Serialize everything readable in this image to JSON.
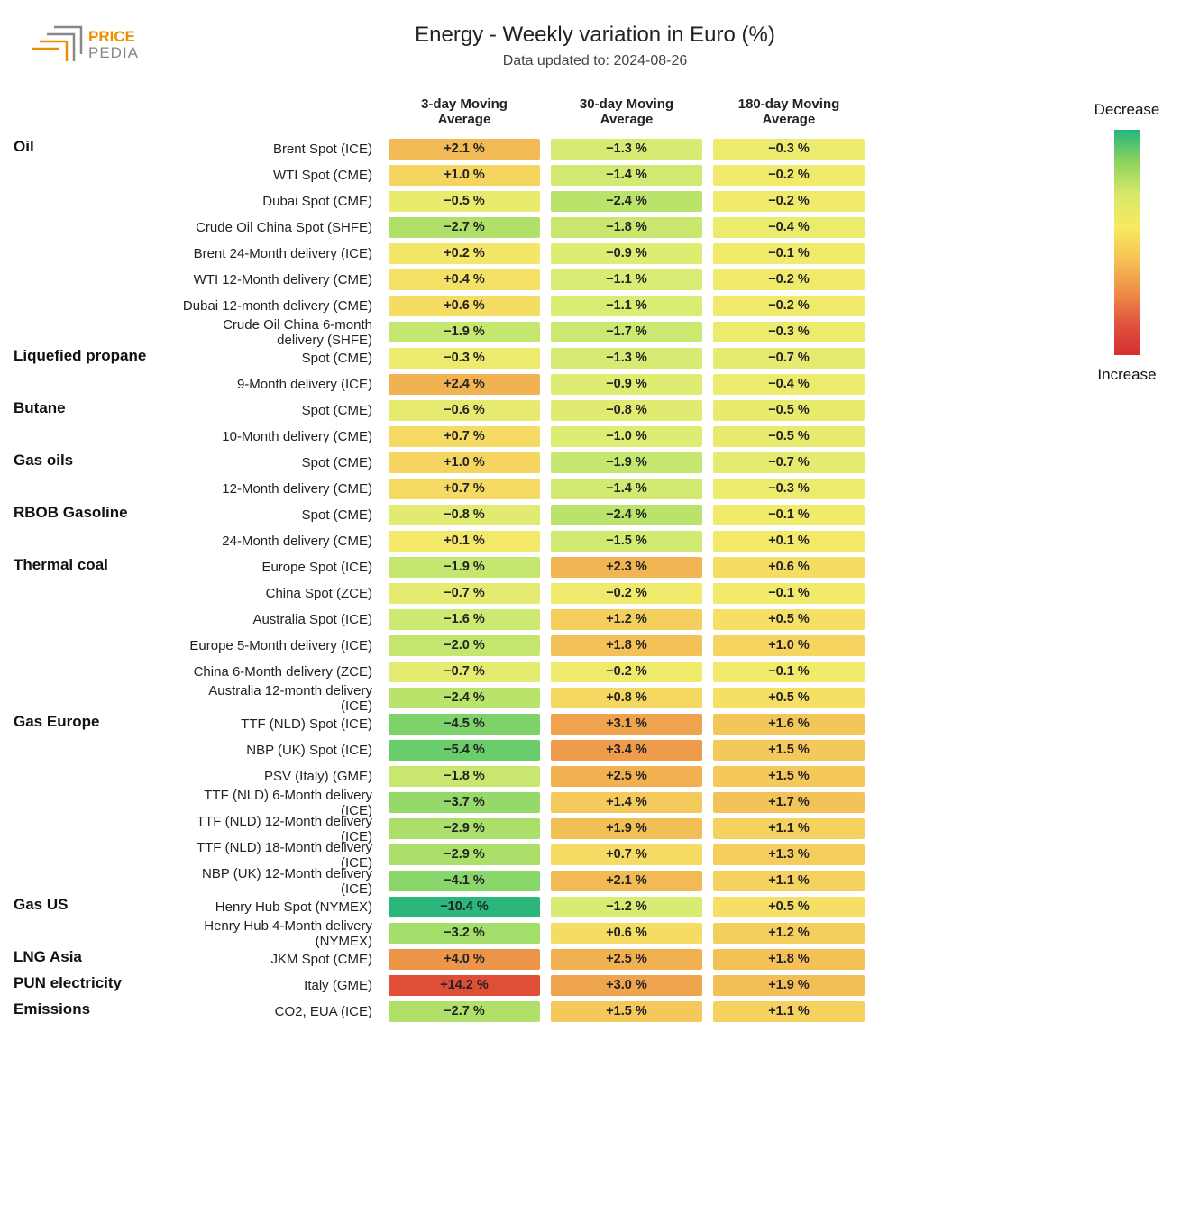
{
  "title": "Energy - Weekly variation in Euro (%)",
  "subtitle": "Data updated to: 2024-08-26",
  "logo": {
    "text1": "PRICE",
    "text2": "PEDIA",
    "color1": "#f08c00",
    "color2": "#888888"
  },
  "columns": [
    "3-day Moving Average",
    "30-day Moving Average",
    "180-day Moving Average"
  ],
  "legend": {
    "top": "Decrease",
    "bottom": "Increase",
    "gradient": [
      "#24b47e",
      "#8fd35f",
      "#d6e86a",
      "#f7ea5f",
      "#f5c455",
      "#f09048",
      "#e15440",
      "#d62f2f"
    ]
  },
  "color_scale": {
    "min": -11,
    "max": 15,
    "stops": [
      {
        "v": -11,
        "c": "#24b47e"
      },
      {
        "v": -5,
        "c": "#6fcf6a"
      },
      {
        "v": -2.5,
        "c": "#b7e26a"
      },
      {
        "v": -1.2,
        "c": "#d8ec74"
      },
      {
        "v": 0,
        "c": "#f4ea6a"
      },
      {
        "v": 1,
        "c": "#f5d460"
      },
      {
        "v": 2,
        "c": "#f2bc55"
      },
      {
        "v": 3.5,
        "c": "#ee9a4a"
      },
      {
        "v": 8,
        "c": "#e8713d"
      },
      {
        "v": 15,
        "c": "#de4a35"
      }
    ]
  },
  "rows": [
    {
      "cat": "Oil",
      "label": "Brent Spot (ICE)",
      "v": [
        2.1,
        -1.3,
        -0.3
      ]
    },
    {
      "cat": "",
      "label": "WTI Spot (CME)",
      "v": [
        1.0,
        -1.4,
        -0.2
      ]
    },
    {
      "cat": "",
      "label": "Dubai Spot (CME)",
      "v": [
        -0.5,
        -2.4,
        -0.2
      ]
    },
    {
      "cat": "",
      "label": "Crude Oil China Spot (SHFE)",
      "v": [
        -2.7,
        -1.8,
        -0.4
      ]
    },
    {
      "cat": "",
      "label": "Brent 24-Month delivery (ICE)",
      "v": [
        0.2,
        -0.9,
        -0.1
      ]
    },
    {
      "cat": "",
      "label": "WTI 12-Month delivery (CME)",
      "v": [
        0.4,
        -1.1,
        -0.2
      ]
    },
    {
      "cat": "",
      "label": "Dubai 12-month delivery (CME)",
      "v": [
        0.6,
        -1.1,
        -0.2
      ]
    },
    {
      "cat": "",
      "label": "Crude Oil China 6-month delivery (SHFE)",
      "v": [
        -1.9,
        -1.7,
        -0.3
      ]
    },
    {
      "cat": "Liquefied propane",
      "label": "Spot (CME)",
      "v": [
        -0.3,
        -1.3,
        -0.7
      ]
    },
    {
      "cat": "",
      "label": "9-Month delivery (ICE)",
      "v": [
        2.4,
        -0.9,
        -0.4
      ]
    },
    {
      "cat": "Butane",
      "label": "Spot (CME)",
      "v": [
        -0.6,
        -0.8,
        -0.5
      ]
    },
    {
      "cat": "",
      "label": "10-Month delivery (CME)",
      "v": [
        0.7,
        -1.0,
        -0.5
      ]
    },
    {
      "cat": "Gas oils",
      "label": "Spot (CME)",
      "v": [
        1.0,
        -1.9,
        -0.7
      ]
    },
    {
      "cat": "",
      "label": "12-Month delivery (CME)",
      "v": [
        0.7,
        -1.4,
        -0.3
      ]
    },
    {
      "cat": "RBOB Gasoline",
      "label": "Spot (CME)",
      "v": [
        -0.8,
        -2.4,
        -0.1
      ]
    },
    {
      "cat": "",
      "label": "24-Month delivery (CME)",
      "v": [
        0.1,
        -1.5,
        0.1
      ]
    },
    {
      "cat": "Thermal coal",
      "label": "Europe Spot (ICE)",
      "v": [
        -1.9,
        2.3,
        0.6
      ]
    },
    {
      "cat": "",
      "label": "China Spot (ZCE)",
      "v": [
        -0.7,
        -0.2,
        -0.1
      ]
    },
    {
      "cat": "",
      "label": "Australia Spot (ICE)",
      "v": [
        -1.6,
        1.2,
        0.5
      ]
    },
    {
      "cat": "",
      "label": "Europe 5-Month delivery (ICE)",
      "v": [
        -2.0,
        1.8,
        1.0
      ]
    },
    {
      "cat": "",
      "label": "China 6-Month delivery (ZCE)",
      "v": [
        -0.7,
        -0.2,
        -0.1
      ]
    },
    {
      "cat": "",
      "label": "Australia 12-month delivery (ICE)",
      "v": [
        -2.4,
        0.8,
        0.5
      ]
    },
    {
      "cat": "Gas Europe",
      "label": "TTF (NLD) Spot (ICE)",
      "v": [
        -4.5,
        3.1,
        1.6
      ]
    },
    {
      "cat": "",
      "label": "NBP (UK) Spot (ICE)",
      "v": [
        -5.4,
        3.4,
        1.5
      ]
    },
    {
      "cat": "",
      "label": "PSV (Italy) (GME)",
      "v": [
        -1.8,
        2.5,
        1.5
      ]
    },
    {
      "cat": "",
      "label": "TTF (NLD) 6-Month delivery (ICE)",
      "v": [
        -3.7,
        1.4,
        1.7
      ]
    },
    {
      "cat": "",
      "label": "TTF (NLD) 12-Month delivery (ICE)",
      "v": [
        -2.9,
        1.9,
        1.1
      ]
    },
    {
      "cat": "",
      "label": "TTF (NLD) 18-Month delivery (ICE)",
      "v": [
        -2.9,
        0.7,
        1.3
      ]
    },
    {
      "cat": "",
      "label": "NBP (UK) 12-Month delivery (ICE)",
      "v": [
        -4.1,
        2.1,
        1.1
      ]
    },
    {
      "cat": "Gas US",
      "label": "Henry Hub Spot (NYMEX)",
      "v": [
        -10.4,
        -1.2,
        0.5
      ]
    },
    {
      "cat": "",
      "label": "Henry Hub 4-Month delivery (NYMEX)",
      "v": [
        -3.2,
        0.6,
        1.2
      ]
    },
    {
      "cat": "LNG Asia",
      "label": "JKM Spot (CME)",
      "v": [
        4.0,
        2.5,
        1.8
      ]
    },
    {
      "cat": "PUN electricity",
      "label": "Italy (GME)",
      "v": [
        14.2,
        3.0,
        1.9
      ]
    },
    {
      "cat": "Emissions",
      "label": "CO2, EUA (ICE)",
      "v": [
        -2.7,
        1.5,
        1.1
      ]
    }
  ]
}
